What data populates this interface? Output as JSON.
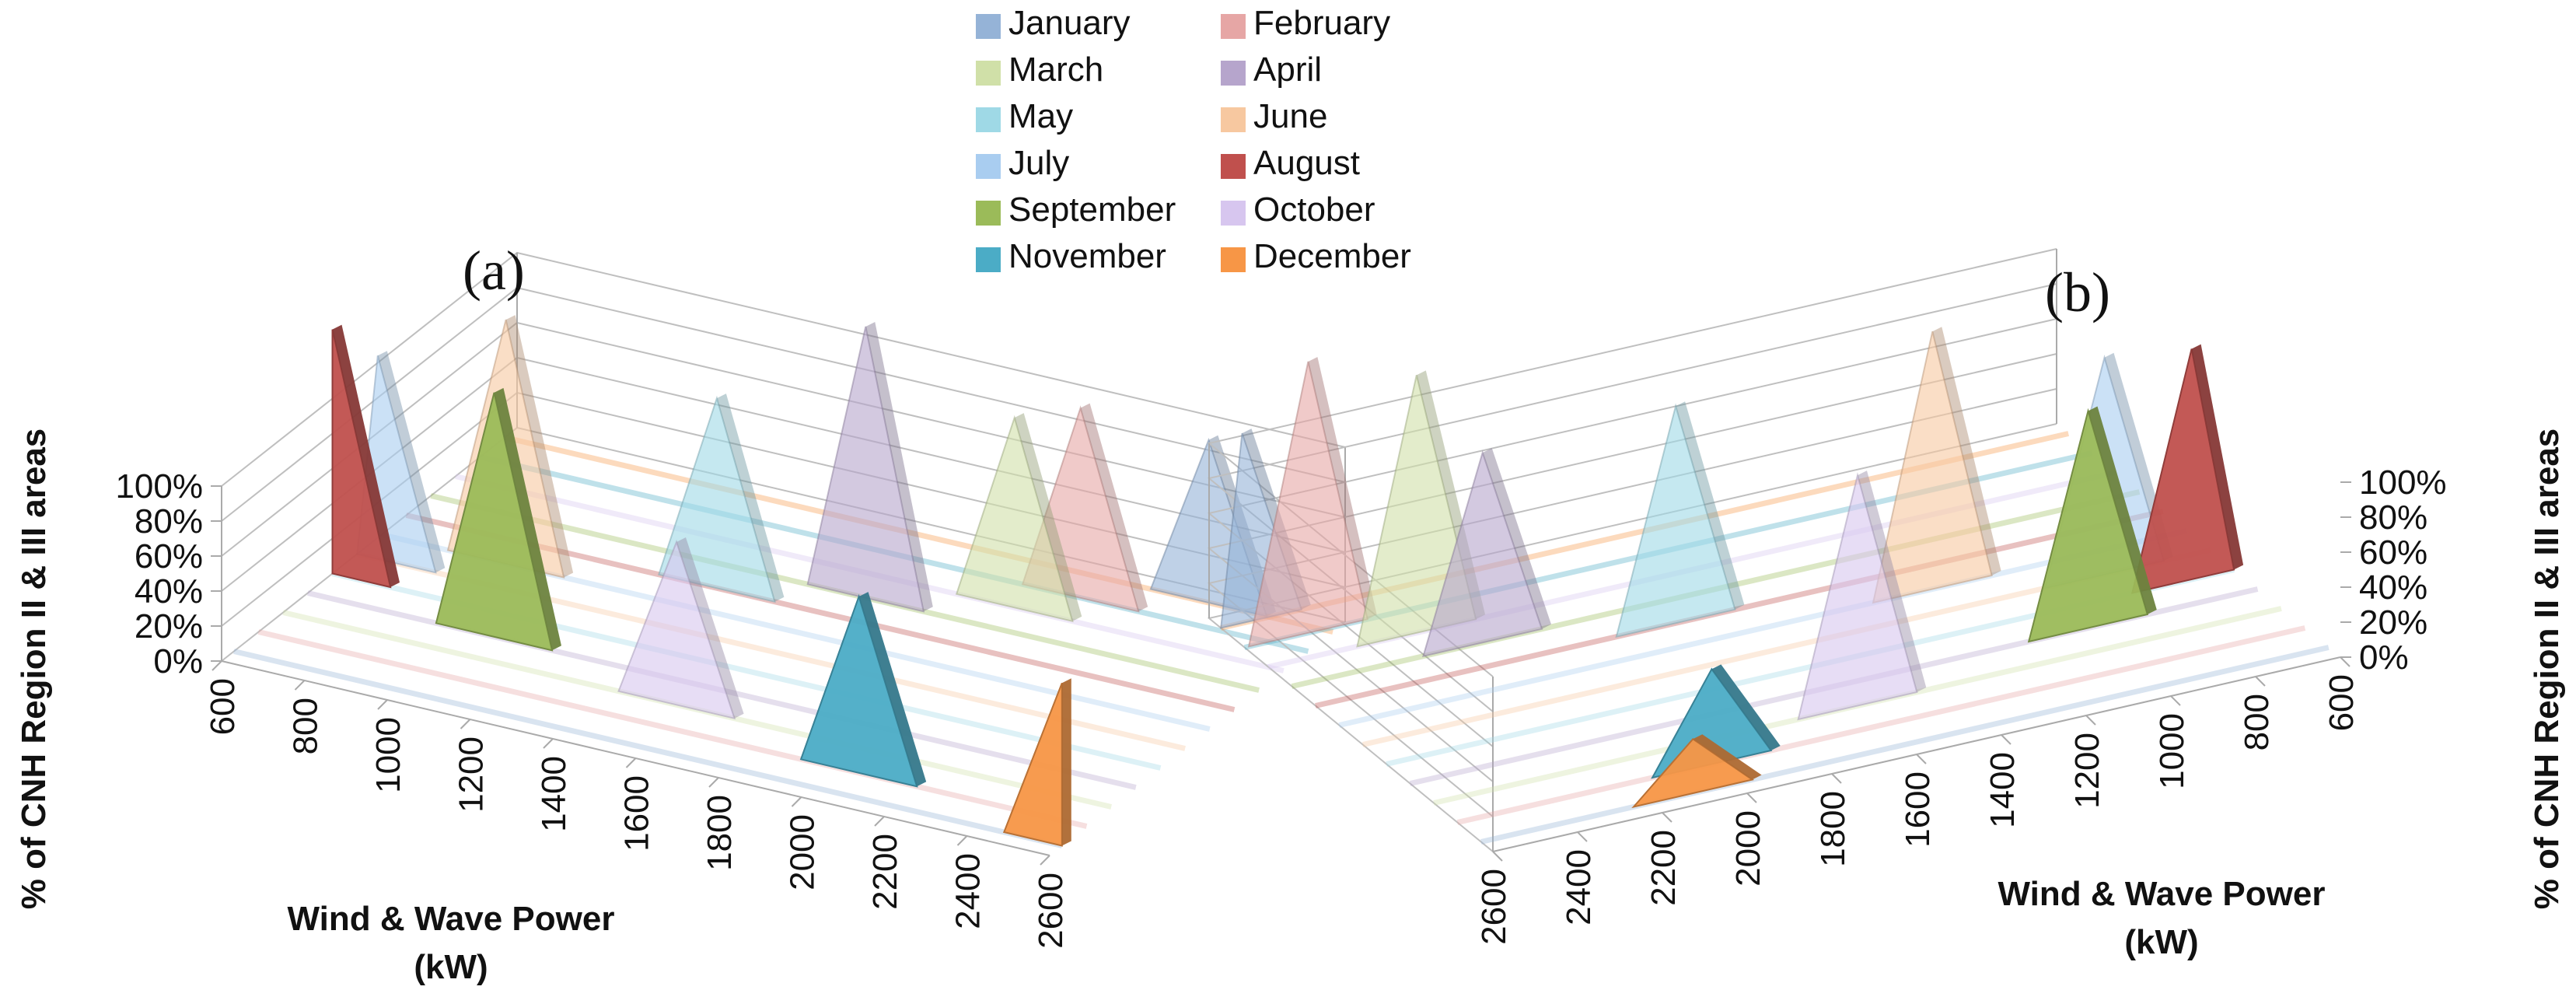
{
  "chart_data": [
    {
      "panel": "(a)",
      "type": "3d-area",
      "x_label": "Wind & Wave Power (kW)",
      "x_label_line1": "Wind & Wave Power",
      "x_label_line2": "(kW)",
      "y_label": "% of CNH Region II & III areas",
      "y_ticks": [
        "0%",
        "20%",
        "40%",
        "60%",
        "80%",
        "100%"
      ],
      "y_range": [
        0,
        100
      ],
      "x_ticks": [
        "600",
        "800",
        "1000",
        "1200",
        "1400",
        "1600",
        "1800",
        "2000",
        "2200",
        "2400",
        "2600"
      ],
      "series": [
        {
          "name": "January",
          "peak_x": 2300,
          "peak_y": 60
        },
        {
          "name": "February",
          "peak_x": 2050,
          "peak_y": 70
        },
        {
          "name": "March",
          "peak_x": 1950,
          "peak_y": 70
        },
        {
          "name": "April",
          "peak_x": 1650,
          "peak_y": 100
        },
        {
          "name": "May",
          "peak_x": 1350,
          "peak_y": 70
        },
        {
          "name": "June",
          "peak_x": 900,
          "peak_y": 90
        },
        {
          "name": "July",
          "peak_x": 650,
          "peak_y": 75
        },
        {
          "name": "August",
          "peak_x": 600,
          "peak_y": 90
        },
        {
          "name": "September",
          "peak_x": 1050,
          "peak_y": 90
        },
        {
          "name": "October",
          "peak_x": 1550,
          "peak_y": 60
        },
        {
          "name": "November",
          "peak_x": 2050,
          "peak_y": 65
        },
        {
          "name": "December",
          "peak_x": 2600,
          "peak_y": 60
        }
      ]
    },
    {
      "panel": "(b)",
      "type": "3d-area",
      "x_label": "Wind & Wave Power (kW)",
      "x_label_line1": "Wind & Wave Power",
      "x_label_line2": "(kW)",
      "y_label": "% of CNH Region II & III areas",
      "y_ticks": [
        "0%",
        "20%",
        "40%",
        "60%",
        "80%",
        "100%"
      ],
      "y_range": [
        0,
        100
      ],
      "x_ticks": [
        "2600",
        "2400",
        "2200",
        "2000",
        "1800",
        "1600",
        "1400",
        "1200",
        "1000",
        "800",
        "600"
      ],
      "series": [
        {
          "name": "January",
          "peak_x": 2550,
          "peak_y": 70
        },
        {
          "name": "February",
          "peak_x": 2450,
          "peak_y": 100
        },
        {
          "name": "March",
          "peak_x": 2250,
          "peak_y": 95
        },
        {
          "name": "April",
          "peak_x": 2150,
          "peak_y": 70
        },
        {
          "name": "May",
          "peak_x": 1750,
          "peak_y": 80
        },
        {
          "name": "June",
          "peak_x": 1200,
          "peak_y": 95
        },
        {
          "name": "July",
          "peak_x": 850,
          "peak_y": 80
        },
        {
          "name": "August",
          "peak_x": 700,
          "peak_y": 85
        },
        {
          "name": "September",
          "peak_x": 1000,
          "peak_y": 80
        },
        {
          "name": "October",
          "peak_x": 1600,
          "peak_y": 85
        },
        {
          "name": "November",
          "peak_x": 2000,
          "peak_y": 35
        },
        {
          "name": "December",
          "peak_x": 2100,
          "peak_y": 20
        }
      ]
    }
  ],
  "legend": [
    {
      "name": "January",
      "color": "#95b3d7"
    },
    {
      "name": "February",
      "color": "#e6a6a5"
    },
    {
      "name": "March",
      "color": "#d0e0a8"
    },
    {
      "name": "April",
      "color": "#b6a5cc"
    },
    {
      "name": "May",
      "color": "#9fd9e6"
    },
    {
      "name": "June",
      "color": "#f7c8a0"
    },
    {
      "name": "July",
      "color": "#a9cdf0"
    },
    {
      "name": "August",
      "color": "#c0504d"
    },
    {
      "name": "September",
      "color": "#9bbb59"
    },
    {
      "name": "October",
      "color": "#d7c6ef"
    },
    {
      "name": "November",
      "color": "#4bacc6"
    },
    {
      "name": "December",
      "color": "#f79646"
    }
  ],
  "colors": {
    "axis": "#aaaaaa",
    "grid": "#bfbfbf",
    "text": "#111111",
    "floor_stripe": "#dfe3ec"
  }
}
